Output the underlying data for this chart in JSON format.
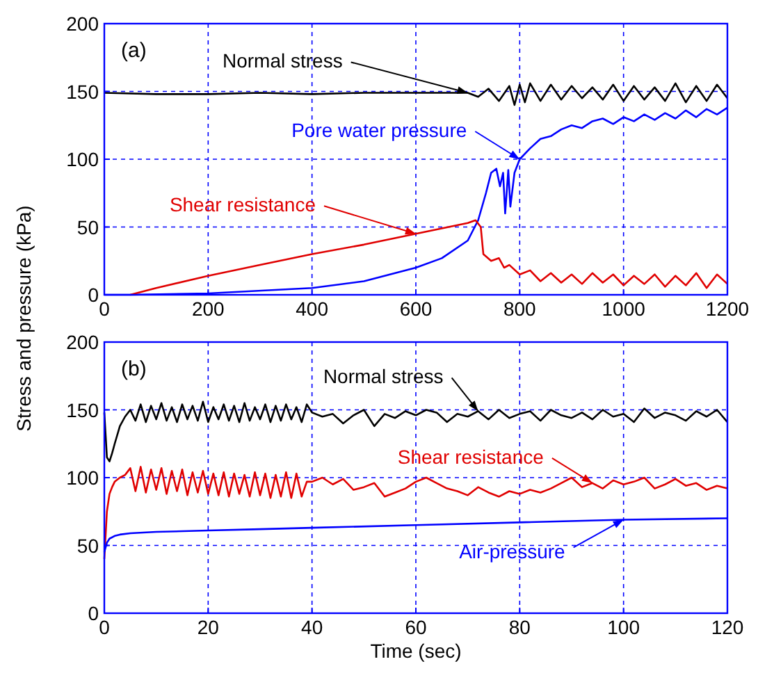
{
  "chart_data": [
    {
      "type": "line",
      "title": "(a)",
      "ylabel": "Stress and pressure (kPa)",
      "xlim": [
        0,
        1200
      ],
      "xticks": [
        0,
        200,
        400,
        600,
        800,
        1000,
        1200
      ],
      "ylim": [
        0,
        200
      ],
      "yticks": [
        0,
        50,
        100,
        150,
        200
      ],
      "grid": true,
      "series": [
        {
          "name": "Normal stress",
          "color": "#000000",
          "x": [
            0,
            100,
            200,
            300,
            400,
            500,
            600,
            700,
            720,
            740,
            760,
            780,
            790,
            800,
            810,
            820,
            840,
            860,
            880,
            900,
            920,
            940,
            960,
            980,
            1000,
            1020,
            1040,
            1060,
            1080,
            1100,
            1120,
            1140,
            1160,
            1180,
            1200
          ],
          "values": [
            149,
            148,
            148,
            149,
            148,
            149,
            149,
            149,
            146,
            152,
            143,
            154,
            140,
            155,
            142,
            156,
            143,
            155,
            144,
            154,
            145,
            153,
            144,
            155,
            143,
            154,
            144,
            153,
            143,
            156,
            142,
            154,
            143,
            155,
            145
          ]
        },
        {
          "name": "Pore water pressure",
          "color": "#0000ff",
          "x": [
            0,
            50,
            200,
            400,
            500,
            600,
            650,
            700,
            720,
            735,
            745,
            755,
            762,
            768,
            772,
            778,
            782,
            790,
            800,
            820,
            840,
            860,
            880,
            900,
            920,
            940,
            960,
            980,
            1000,
            1020,
            1040,
            1060,
            1080,
            1100,
            1120,
            1140,
            1160,
            1180,
            1200
          ],
          "values": [
            0,
            0,
            1,
            5,
            10,
            20,
            27,
            40,
            55,
            75,
            90,
            93,
            80,
            90,
            60,
            92,
            65,
            90,
            100,
            108,
            115,
            117,
            122,
            125,
            123,
            128,
            130,
            126,
            131,
            128,
            133,
            129,
            134,
            130,
            136,
            131,
            137,
            133,
            138
          ]
        },
        {
          "name": "Shear resistance",
          "color": "#e00000",
          "x": [
            50,
            100,
            200,
            300,
            400,
            500,
            600,
            700,
            715,
            725,
            730,
            745,
            760,
            770,
            780,
            800,
            820,
            840,
            860,
            880,
            900,
            920,
            940,
            960,
            980,
            1000,
            1020,
            1040,
            1060,
            1080,
            1100,
            1120,
            1140,
            1160,
            1180,
            1200
          ],
          "values": [
            0,
            5,
            14,
            22,
            30,
            37,
            45,
            53,
            55,
            50,
            30,
            25,
            27,
            20,
            22,
            15,
            18,
            10,
            16,
            9,
            15,
            8,
            16,
            9,
            15,
            7,
            14,
            8,
            15,
            6,
            14,
            7,
            16,
            5,
            15,
            8
          ]
        }
      ]
    },
    {
      "type": "line",
      "title": "(b)",
      "xlabel": "Time (sec)",
      "xlim": [
        0,
        120
      ],
      "xticks": [
        0,
        20,
        40,
        60,
        80,
        100,
        120
      ],
      "ylim": [
        0,
        200
      ],
      "yticks": [
        0,
        50,
        100,
        150,
        200
      ],
      "grid": true,
      "series": [
        {
          "name": "Normal stress",
          "color": "#000000",
          "x": [
            0,
            0.5,
            1,
            1.5,
            2,
            3,
            4,
            5,
            6,
            7,
            8,
            9,
            10,
            11,
            12,
            13,
            14,
            15,
            16,
            17,
            18,
            19,
            20,
            21,
            22,
            23,
            24,
            25,
            26,
            27,
            28,
            29,
            30,
            31,
            32,
            33,
            34,
            35,
            36,
            37,
            38,
            39,
            40,
            42,
            44,
            46,
            48,
            50,
            52,
            54,
            56,
            58,
            60,
            62,
            64,
            66,
            68,
            70,
            72,
            74,
            76,
            78,
            80,
            82,
            84,
            86,
            88,
            90,
            92,
            94,
            96,
            98,
            100,
            102,
            104,
            106,
            108,
            110,
            112,
            114,
            116,
            118,
            120
          ],
          "values": [
            148,
            115,
            112,
            118,
            125,
            138,
            145,
            150,
            142,
            154,
            141,
            153,
            143,
            155,
            142,
            152,
            141,
            154,
            143,
            153,
            142,
            156,
            141,
            152,
            143,
            154,
            142,
            153,
            141,
            155,
            142,
            152,
            143,
            154,
            141,
            153,
            142,
            154,
            143,
            152,
            141,
            154,
            148,
            145,
            147,
            140,
            146,
            150,
            138,
            147,
            144,
            149,
            146,
            150,
            148,
            141,
            147,
            145,
            149,
            143,
            150,
            144,
            147,
            149,
            142,
            150,
            146,
            144,
            148,
            143,
            150,
            145,
            147,
            141,
            151,
            144,
            148,
            146,
            142,
            149,
            145,
            150,
            141
          ]
        },
        {
          "name": "Shear resistance",
          "color": "#e00000",
          "x": [
            0,
            0.5,
            1,
            1.5,
            2,
            3,
            4,
            5,
            6,
            7,
            8,
            9,
            10,
            11,
            12,
            13,
            14,
            15,
            16,
            17,
            18,
            19,
            20,
            21,
            22,
            23,
            24,
            25,
            26,
            27,
            28,
            29,
            30,
            31,
            32,
            33,
            34,
            35,
            36,
            37,
            38,
            39,
            40,
            42,
            44,
            46,
            48,
            50,
            52,
            54,
            56,
            58,
            60,
            62,
            64,
            66,
            68,
            70,
            72,
            74,
            76,
            78,
            80,
            82,
            84,
            86,
            88,
            90,
            92,
            94,
            96,
            98,
            100,
            102,
            104,
            106,
            108,
            110,
            112,
            114,
            116,
            118,
            120
          ],
          "values": [
            40,
            75,
            88,
            93,
            97,
            100,
            102,
            107,
            90,
            108,
            89,
            106,
            91,
            107,
            88,
            105,
            90,
            106,
            87,
            104,
            89,
            105,
            88,
            103,
            87,
            104,
            86,
            103,
            88,
            102,
            86,
            104,
            87,
            103,
            85,
            102,
            86,
            104,
            85,
            103,
            86,
            97,
            97,
            100,
            95,
            99,
            91,
            93,
            96,
            86,
            89,
            92,
            97,
            100,
            96,
            92,
            90,
            87,
            93,
            89,
            86,
            90,
            88,
            91,
            89,
            92,
            96,
            100,
            93,
            96,
            92,
            98,
            95,
            97,
            100,
            92,
            95,
            99,
            94,
            96,
            91,
            94,
            92
          ]
        },
        {
          "name": "Air-pressure",
          "color": "#0000ff",
          "x": [
            0,
            0.5,
            1,
            2,
            3,
            5,
            10,
            20,
            30,
            40,
            60,
            80,
            100,
            120
          ],
          "values": [
            45,
            52,
            55,
            57,
            58,
            59,
            60,
            61,
            62,
            63,
            65,
            67,
            69,
            70
          ]
        }
      ]
    }
  ]
}
